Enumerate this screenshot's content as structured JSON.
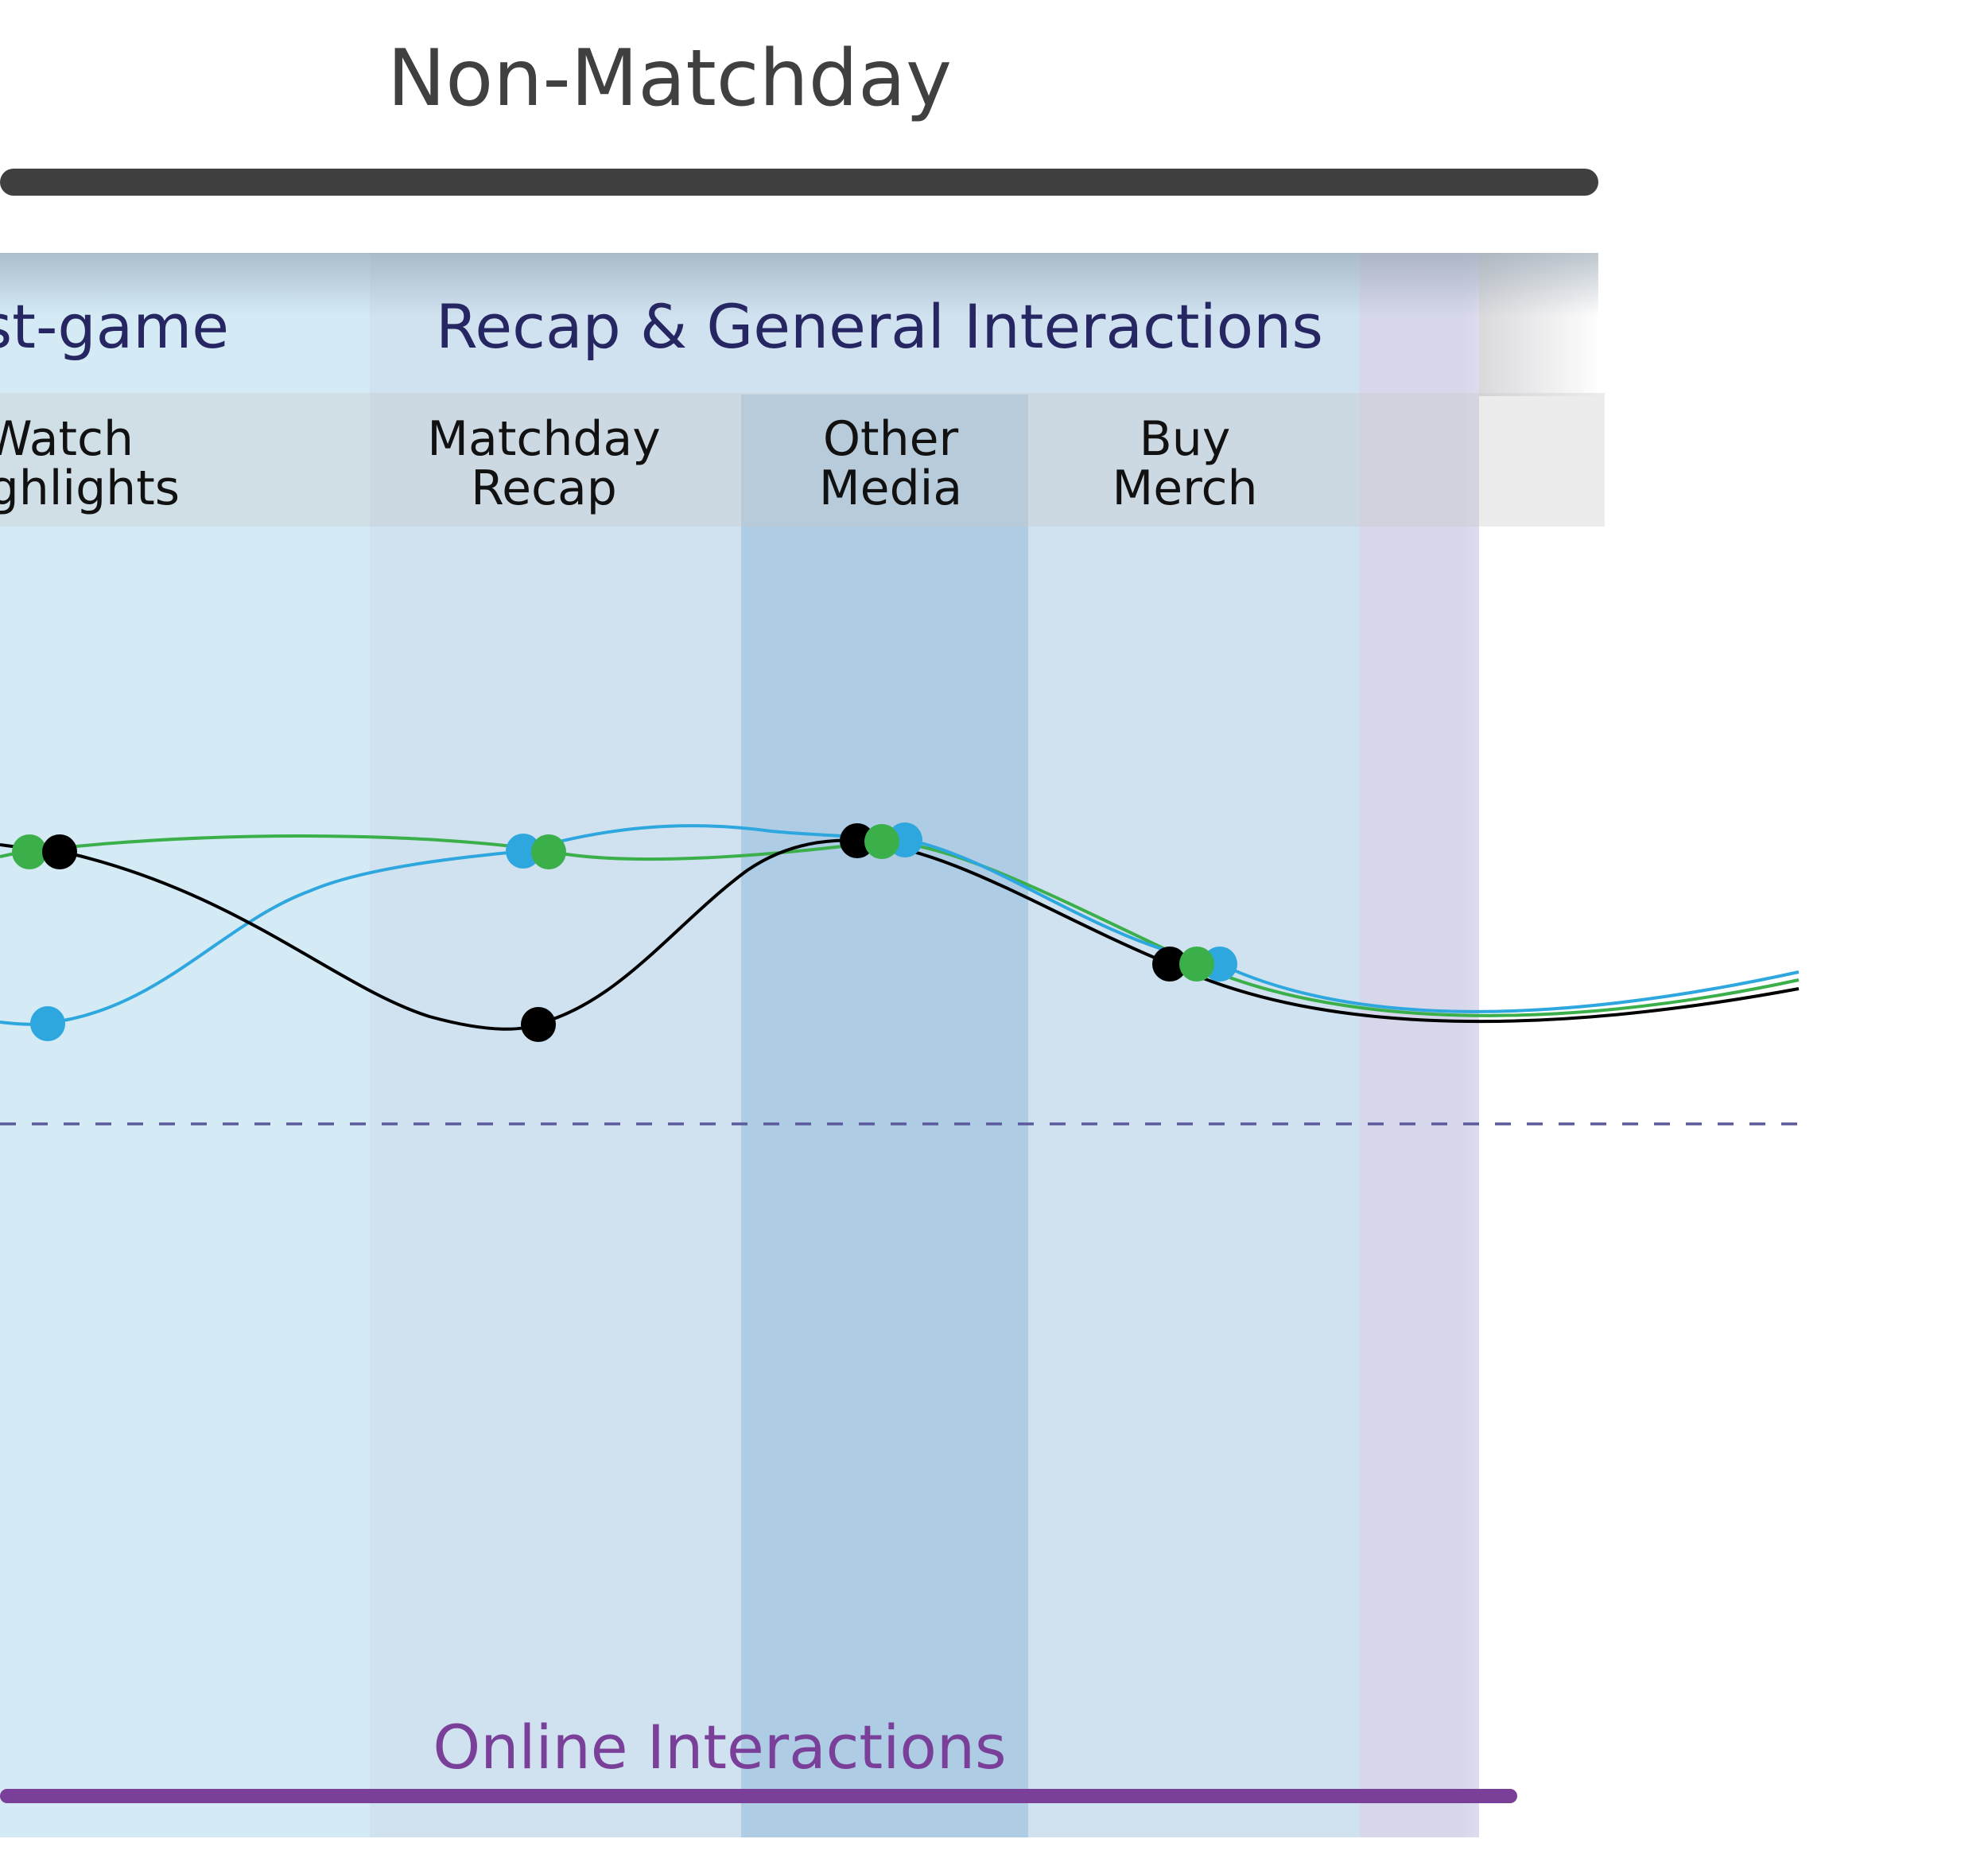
{
  "header": {
    "title": "Non-Matchday"
  },
  "phases": [
    {
      "label": "st-game"
    },
    {
      "label": "Recap & General Interactions"
    }
  ],
  "touchpoints": [
    {
      "line1": "Watch",
      "line2": "ghlights"
    },
    {
      "line1": "Matchday",
      "line2": "Recap"
    },
    {
      "line1": "Other",
      "line2": "Media"
    },
    {
      "line1": "Buy",
      "line2": "Merch"
    }
  ],
  "footer": {
    "label": "Online Interactions"
  },
  "series": [
    {
      "name": "black-series",
      "color": "#000000"
    },
    {
      "name": "green-series",
      "color": "#3aaf4a"
    },
    {
      "name": "blue-series",
      "color": "#2ea7df"
    }
  ],
  "colors": {
    "title": "#404040",
    "phase_text": "#262662",
    "touchpoint_text": "#111111",
    "footer_text": "#7a3f98",
    "footer_bar": "#7a3f98",
    "baseline": "#5b5a9c",
    "highlight_col": "#aecde4"
  }
}
